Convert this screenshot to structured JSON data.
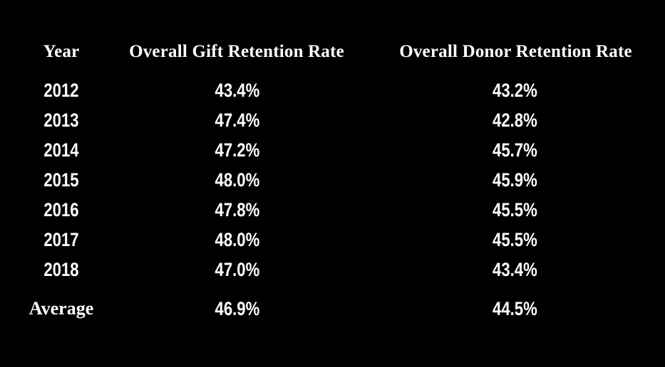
{
  "chart_data": {
    "type": "table",
    "title": "",
    "columns": [
      "Year",
      "Overall Gift Retention Rate",
      "Overall Donor Retention Rate"
    ],
    "rows": [
      {
        "year": "2012",
        "gift": "43.4%",
        "donor": "43.2%"
      },
      {
        "year": "2013",
        "gift": "47.4%",
        "donor": "42.8%"
      },
      {
        "year": "2014",
        "gift": "47.2%",
        "donor": "45.7%"
      },
      {
        "year": "2015",
        "gift": "48.0%",
        "donor": "45.9%"
      },
      {
        "year": "2016",
        "gift": "47.8%",
        "donor": "45.5%"
      },
      {
        "year": "2017",
        "gift": "48.0%",
        "donor": "45.5%"
      },
      {
        "year": "2018",
        "gift": "47.0%",
        "donor": "43.4%"
      }
    ],
    "series": [
      {
        "name": "Overall Gift Retention Rate",
        "values": [
          43.4,
          47.4,
          47.2,
          48.0,
          47.8,
          48.0,
          47.0
        ]
      },
      {
        "name": "Overall Donor Retention Rate",
        "values": [
          43.2,
          42.8,
          45.7,
          45.9,
          45.5,
          45.5,
          43.4
        ]
      }
    ],
    "average_row": {
      "label": "Average",
      "gift": "46.9%",
      "donor": "44.5%"
    },
    "colors": {
      "background": "#000000",
      "text": "#ffffff"
    }
  }
}
